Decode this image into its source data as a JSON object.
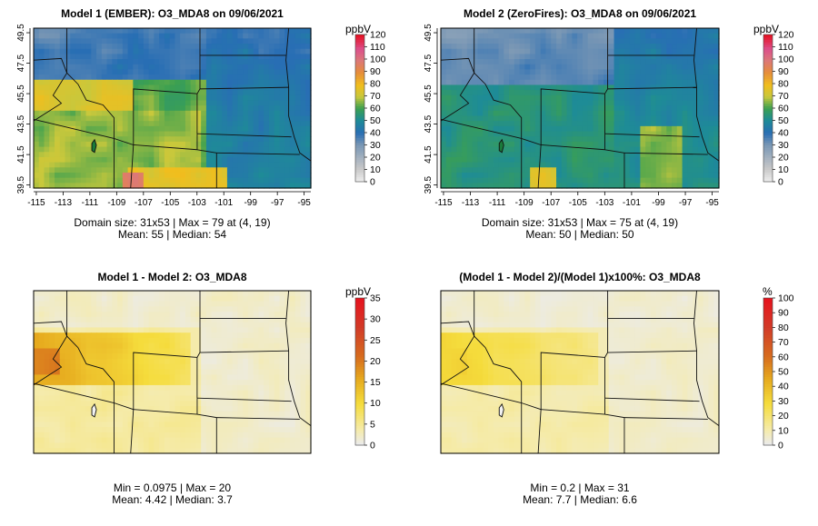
{
  "chart_data": [
    {
      "type": "heatmap",
      "title": "Model 1 (EMBER): O3_MDA8 on 09/06/2021",
      "colorbar_unit": "ppbV",
      "colorbar_ticks": [
        "0",
        "10",
        "20",
        "30",
        "40",
        "50",
        "60",
        "70",
        "80",
        "90",
        "100",
        "110",
        "120"
      ],
      "xticks": [
        "-115",
        "-113",
        "-111",
        "-109",
        "-107",
        "-105",
        "-103",
        "-101",
        "-99",
        "-97",
        "-95"
      ],
      "yticks": [
        "39.5",
        "41.5",
        "43.5",
        "45.5",
        "47.5",
        "49.5"
      ],
      "xlim": [
        -115.2,
        -94.5
      ],
      "ylim": [
        39.3,
        49.8
      ],
      "grid": {
        "rows": 31,
        "cols": 53
      },
      "stats_line1": "Domain size: 31x53 | Max = 79 at (4, 19)",
      "stats_line2": "Mean: 55 |  Median: 54",
      "field": {
        "mean": 55,
        "max": 79,
        "scheme": "ozone"
      }
    },
    {
      "type": "heatmap",
      "title": "Model 2 (ZeroFires): O3_MDA8 on 09/06/2021",
      "colorbar_unit": "ppbV",
      "colorbar_ticks": [
        "0",
        "10",
        "20",
        "30",
        "40",
        "50",
        "60",
        "70",
        "80",
        "90",
        "100",
        "110",
        "120"
      ],
      "xticks": [
        "-115",
        "-113",
        "-111",
        "-109",
        "-107",
        "-105",
        "-103",
        "-101",
        "-99",
        "-97",
        "-95"
      ],
      "yticks": [
        "39.5",
        "41.5",
        "43.5",
        "45.5",
        "47.5",
        "49.5"
      ],
      "xlim": [
        -115.2,
        -94.5
      ],
      "ylim": [
        39.3,
        49.8
      ],
      "grid": {
        "rows": 31,
        "cols": 53
      },
      "stats_line1": "Domain size: 31x53 | Max = 75 at (4, 19)",
      "stats_line2": "Mean: 50 |  Median: 50",
      "field": {
        "mean": 50,
        "max": 75,
        "scheme": "ozone"
      }
    },
    {
      "type": "heatmap",
      "title": "Model 1 - Model 2: O3_MDA8",
      "colorbar_unit": "ppbV",
      "colorbar_ticks": [
        "0",
        "5",
        "10",
        "15",
        "20",
        "25",
        "30",
        "35"
      ],
      "xticks": [],
      "yticks": [],
      "grid": {
        "rows": 31,
        "cols": 53
      },
      "stats_line1": "Min = 0.0975 | Max = 20",
      "stats_line2": "Mean: 4.42 |  Median: 3.7",
      "field": {
        "min": 0.0975,
        "max": 20,
        "mean": 4.42,
        "scheme": "diff"
      }
    },
    {
      "type": "heatmap",
      "title": "(Model 1 - Model 2)/(Model 1)x100%: O3_MDA8",
      "colorbar_unit": "%",
      "colorbar_ticks": [
        "0",
        "10",
        "20",
        "30",
        "40",
        "50",
        "60",
        "70",
        "80",
        "90",
        "100"
      ],
      "xticks": [],
      "yticks": [],
      "grid": {
        "rows": 31,
        "cols": 53
      },
      "stats_line1": "Min = 0.2 | Max = 31",
      "stats_line2": "Mean: 7.7 |  Median: 6.6",
      "field": {
        "min": 0.2,
        "max": 31,
        "mean": 7.7,
        "scheme": "pct"
      }
    }
  ]
}
